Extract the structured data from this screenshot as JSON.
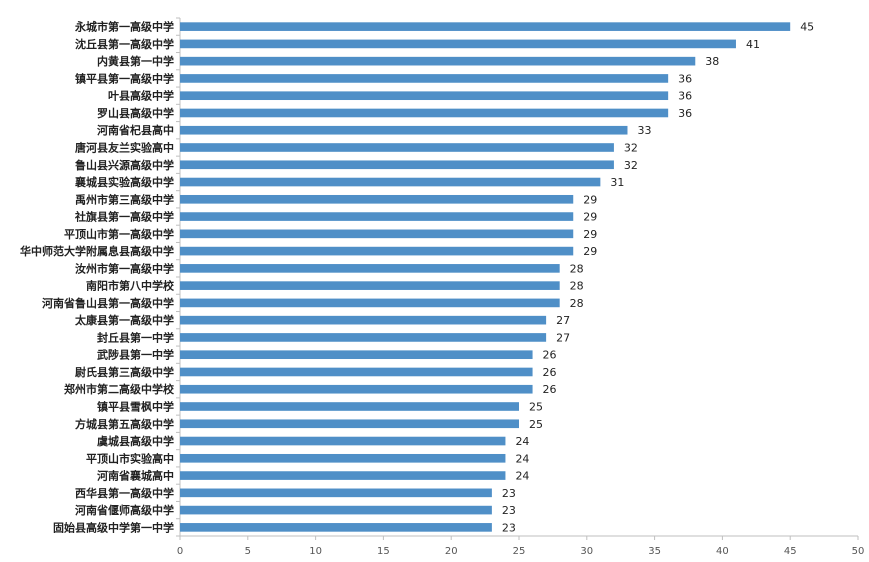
{
  "chart_data": {
    "type": "bar",
    "orientation": "horizontal",
    "categories": [
      "永城市第一高级中学",
      "沈丘县第一高级中学",
      "内黄县第一中学",
      "镇平县第一高级中学",
      "叶县高级中学",
      "罗山县高级中学",
      "河南省杞县高中",
      "唐河县友兰实验高中",
      "鲁山县兴源高级中学",
      "襄城县实验高级中学",
      "禹州市第三高级中学",
      "社旗县第一高级中学",
      "平顶山市第一高级中学",
      "华中师范大学附属息县高级中学",
      "汝州市第一高级中学",
      "南阳市第八中学校",
      "河南省鲁山县第一高级中学",
      "太康县第一高级中学",
      "封丘县第一中学",
      "武陟县第一中学",
      "尉氏县第三高级中学",
      "郑州市第二高级中学校",
      "镇平县雪枫中学",
      "方城县第五高级中学",
      "虞城县高级中学",
      "平顶山市实验高中",
      "河南省襄城高中",
      "西华县第一高级中学",
      "河南省偃师高级中学",
      "固始县高级中学第一中学"
    ],
    "values": [
      45,
      41,
      38,
      36,
      36,
      36,
      33,
      32,
      32,
      31,
      29,
      29,
      29,
      29,
      28,
      28,
      28,
      27,
      27,
      26,
      26,
      26,
      25,
      25,
      24,
      24,
      24,
      23,
      23,
      23
    ],
    "xlim": [
      0,
      50
    ],
    "xticks": [
      0,
      5,
      10,
      15,
      20,
      25,
      30,
      35,
      40,
      45,
      50
    ],
    "title": "",
    "xlabel": "",
    "ylabel": "",
    "grid": false,
    "legend": "none",
    "bar_color": "#4f8fc7",
    "axis_color": "#bfbfbf"
  }
}
